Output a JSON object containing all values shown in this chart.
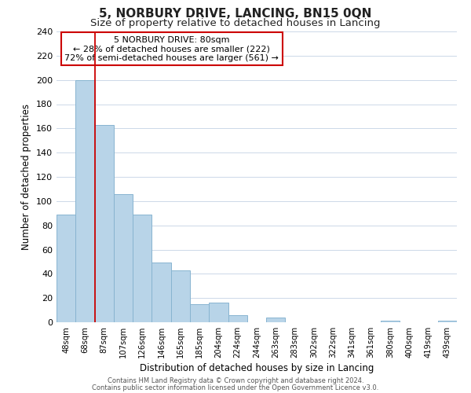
{
  "title": "5, NORBURY DRIVE, LANCING, BN15 0QN",
  "subtitle": "Size of property relative to detached houses in Lancing",
  "xlabel": "Distribution of detached houses by size in Lancing",
  "ylabel": "Number of detached properties",
  "bar_labels": [
    "48sqm",
    "68sqm",
    "87sqm",
    "107sqm",
    "126sqm",
    "146sqm",
    "165sqm",
    "185sqm",
    "204sqm",
    "224sqm",
    "244sqm",
    "263sqm",
    "283sqm",
    "302sqm",
    "322sqm",
    "341sqm",
    "361sqm",
    "380sqm",
    "400sqm",
    "419sqm",
    "439sqm"
  ],
  "bar_values": [
    89,
    200,
    163,
    106,
    89,
    49,
    43,
    15,
    16,
    6,
    0,
    4,
    0,
    0,
    0,
    0,
    0,
    1,
    0,
    0,
    1
  ],
  "bar_color": "#b8d4e8",
  "bar_edge_color": "#88b4d0",
  "vline_x_idx": 1,
  "vline_color": "#cc0000",
  "ylim_max": 240,
  "yticks": [
    0,
    20,
    40,
    60,
    80,
    100,
    120,
    140,
    160,
    180,
    200,
    220,
    240
  ],
  "annotation_title": "5 NORBURY DRIVE: 80sqm",
  "annotation_line1": "← 28% of detached houses are smaller (222)",
  "annotation_line2": "72% of semi-detached houses are larger (561) →",
  "annotation_box_color": "#ffffff",
  "annotation_box_edge": "#cc0000",
  "footer_line1": "Contains HM Land Registry data © Crown copyright and database right 2024.",
  "footer_line2": "Contains public sector information licensed under the Open Government Licence v3.0.",
  "background_color": "#ffffff",
  "grid_color": "#ccd8e8",
  "title_fontsize": 11,
  "subtitle_fontsize": 9.5
}
